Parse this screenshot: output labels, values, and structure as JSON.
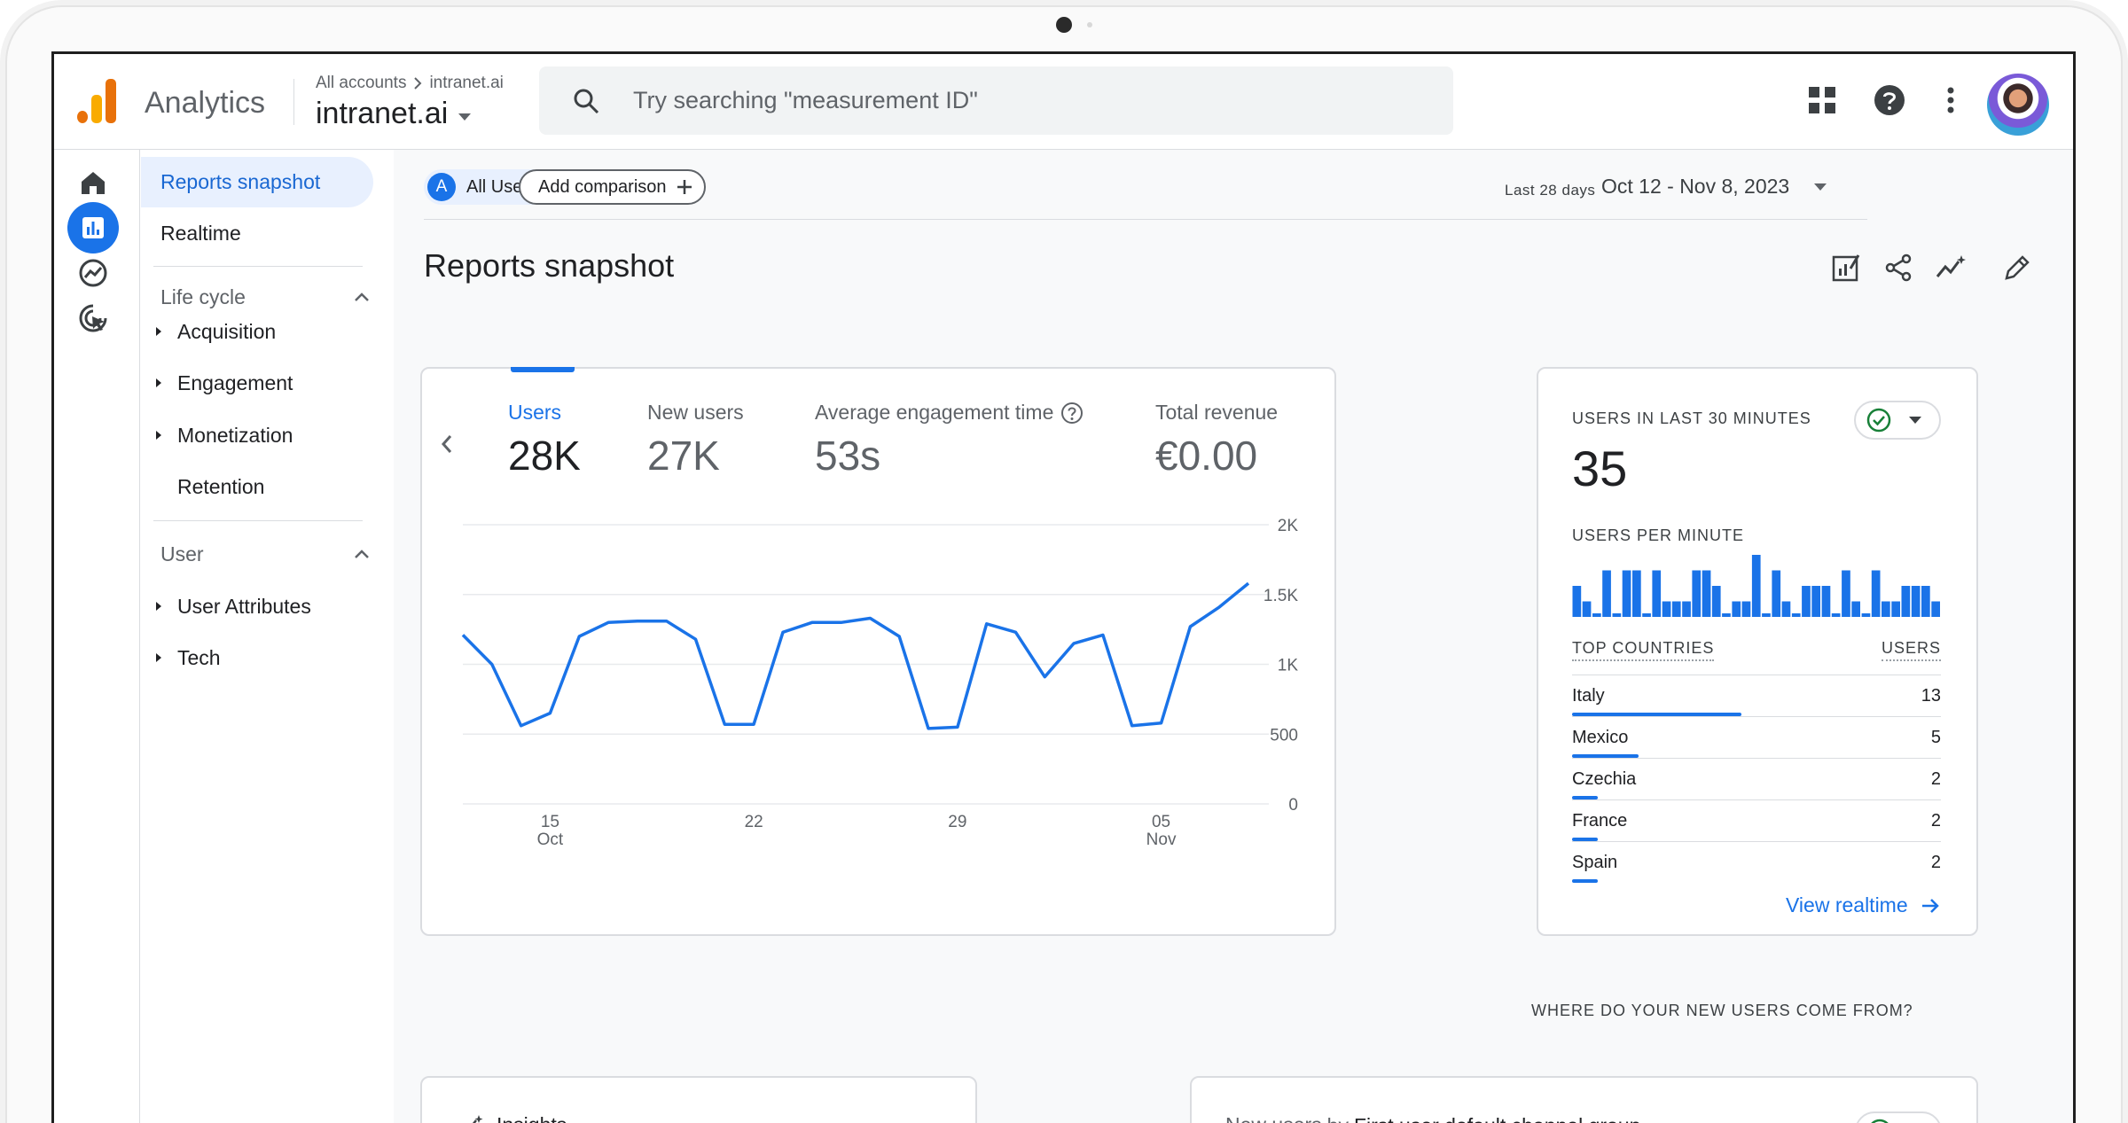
{
  "app": {
    "name": "Analytics"
  },
  "account": {
    "crumb_root": "All accounts",
    "crumb_property": "intranet.ai",
    "property_name": "intranet.ai"
  },
  "search": {
    "placeholder": "Try searching \"measurement ID\""
  },
  "sidebar": {
    "reports_snapshot": "Reports snapshot",
    "realtime": "Realtime",
    "lifecycle": {
      "title": "Life cycle",
      "items": [
        "Acquisition",
        "Engagement",
        "Monetization",
        "Retention"
      ]
    },
    "user": {
      "title": "User",
      "items": [
        "User Attributes",
        "Tech"
      ]
    }
  },
  "toolbar": {
    "segment_letter": "A",
    "segment_label": "All Users",
    "add_comparison": "Add comparison",
    "date_label": "Last 28 days",
    "date_range": "Oct 12 - Nov 8, 2023"
  },
  "page": {
    "title": "Reports snapshot"
  },
  "metrics": [
    {
      "label": "Users",
      "value": "28K"
    },
    {
      "label": "New users",
      "value": "27K"
    },
    {
      "label": "Average engagement time",
      "value": "53s"
    },
    {
      "label": "Total revenue",
      "value": "€0.00"
    }
  ],
  "chart_data": {
    "type": "line",
    "title": "",
    "xlabel": "",
    "ylabel": "",
    "ylim": [
      0,
      2000
    ],
    "y_ticks": [
      "0",
      "500",
      "1K",
      "1.5K",
      "2K"
    ],
    "x_ticks": [
      {
        "day": "15",
        "month": "Oct"
      },
      {
        "day": "22",
        "month": ""
      },
      {
        "day": "29",
        "month": ""
      },
      {
        "day": "05",
        "month": "Nov"
      }
    ],
    "x": [
      "Oct 12",
      "Oct 13",
      "Oct 14",
      "Oct 15",
      "Oct 16",
      "Oct 17",
      "Oct 18",
      "Oct 19",
      "Oct 20",
      "Oct 21",
      "Oct 22",
      "Oct 23",
      "Oct 24",
      "Oct 25",
      "Oct 26",
      "Oct 27",
      "Oct 28",
      "Oct 29",
      "Oct 30",
      "Oct 31",
      "Nov 1",
      "Nov 2",
      "Nov 3",
      "Nov 4",
      "Nov 5",
      "Nov 6",
      "Nov 7",
      "Nov 8"
    ],
    "series": [
      {
        "values": [
          1210,
          1000,
          560,
          650,
          1200,
          1300,
          1310,
          1310,
          1180,
          570,
          570,
          1230,
          1300,
          1300,
          1330,
          1200,
          540,
          550,
          1290,
          1230,
          910,
          1150,
          1210,
          560,
          580,
          1270,
          1410,
          1580
        ]
      }
    ],
    "grid": true
  },
  "realtime": {
    "title": "USERS IN LAST 30 MINUTES",
    "value": "35",
    "per_minute_title": "USERS PER MINUTE",
    "per_minute": [
      2,
      1,
      0,
      3,
      0,
      3,
      3,
      0,
      3,
      1,
      1,
      1,
      3,
      3,
      2,
      0,
      1,
      1,
      4,
      0,
      3,
      1,
      0,
      2,
      2,
      2,
      0,
      3,
      1,
      0,
      3,
      1,
      1,
      2,
      2,
      2,
      1
    ],
    "col_country": "TOP COUNTRIES",
    "col_users": "USERS",
    "countries": [
      {
        "name": "Italy",
        "users": "13",
        "share": 0.46
      },
      {
        "name": "Mexico",
        "users": "5",
        "share": 0.18
      },
      {
        "name": "Czechia",
        "users": "2",
        "share": 0.07
      },
      {
        "name": "France",
        "users": "2",
        "share": 0.07
      },
      {
        "name": "Spain",
        "users": "2",
        "share": 0.07
      }
    ],
    "view_link": "View realtime"
  },
  "section": {
    "where_title": "WHERE DO YOUR NEW USERS COME FROM?"
  },
  "insights": {
    "label": "Insights"
  },
  "channel": {
    "prefix": "New users",
    "by": "by",
    "dimension": "First user default channel group"
  },
  "colors": {
    "accent": "#1a73e8",
    "check": "#188038"
  }
}
